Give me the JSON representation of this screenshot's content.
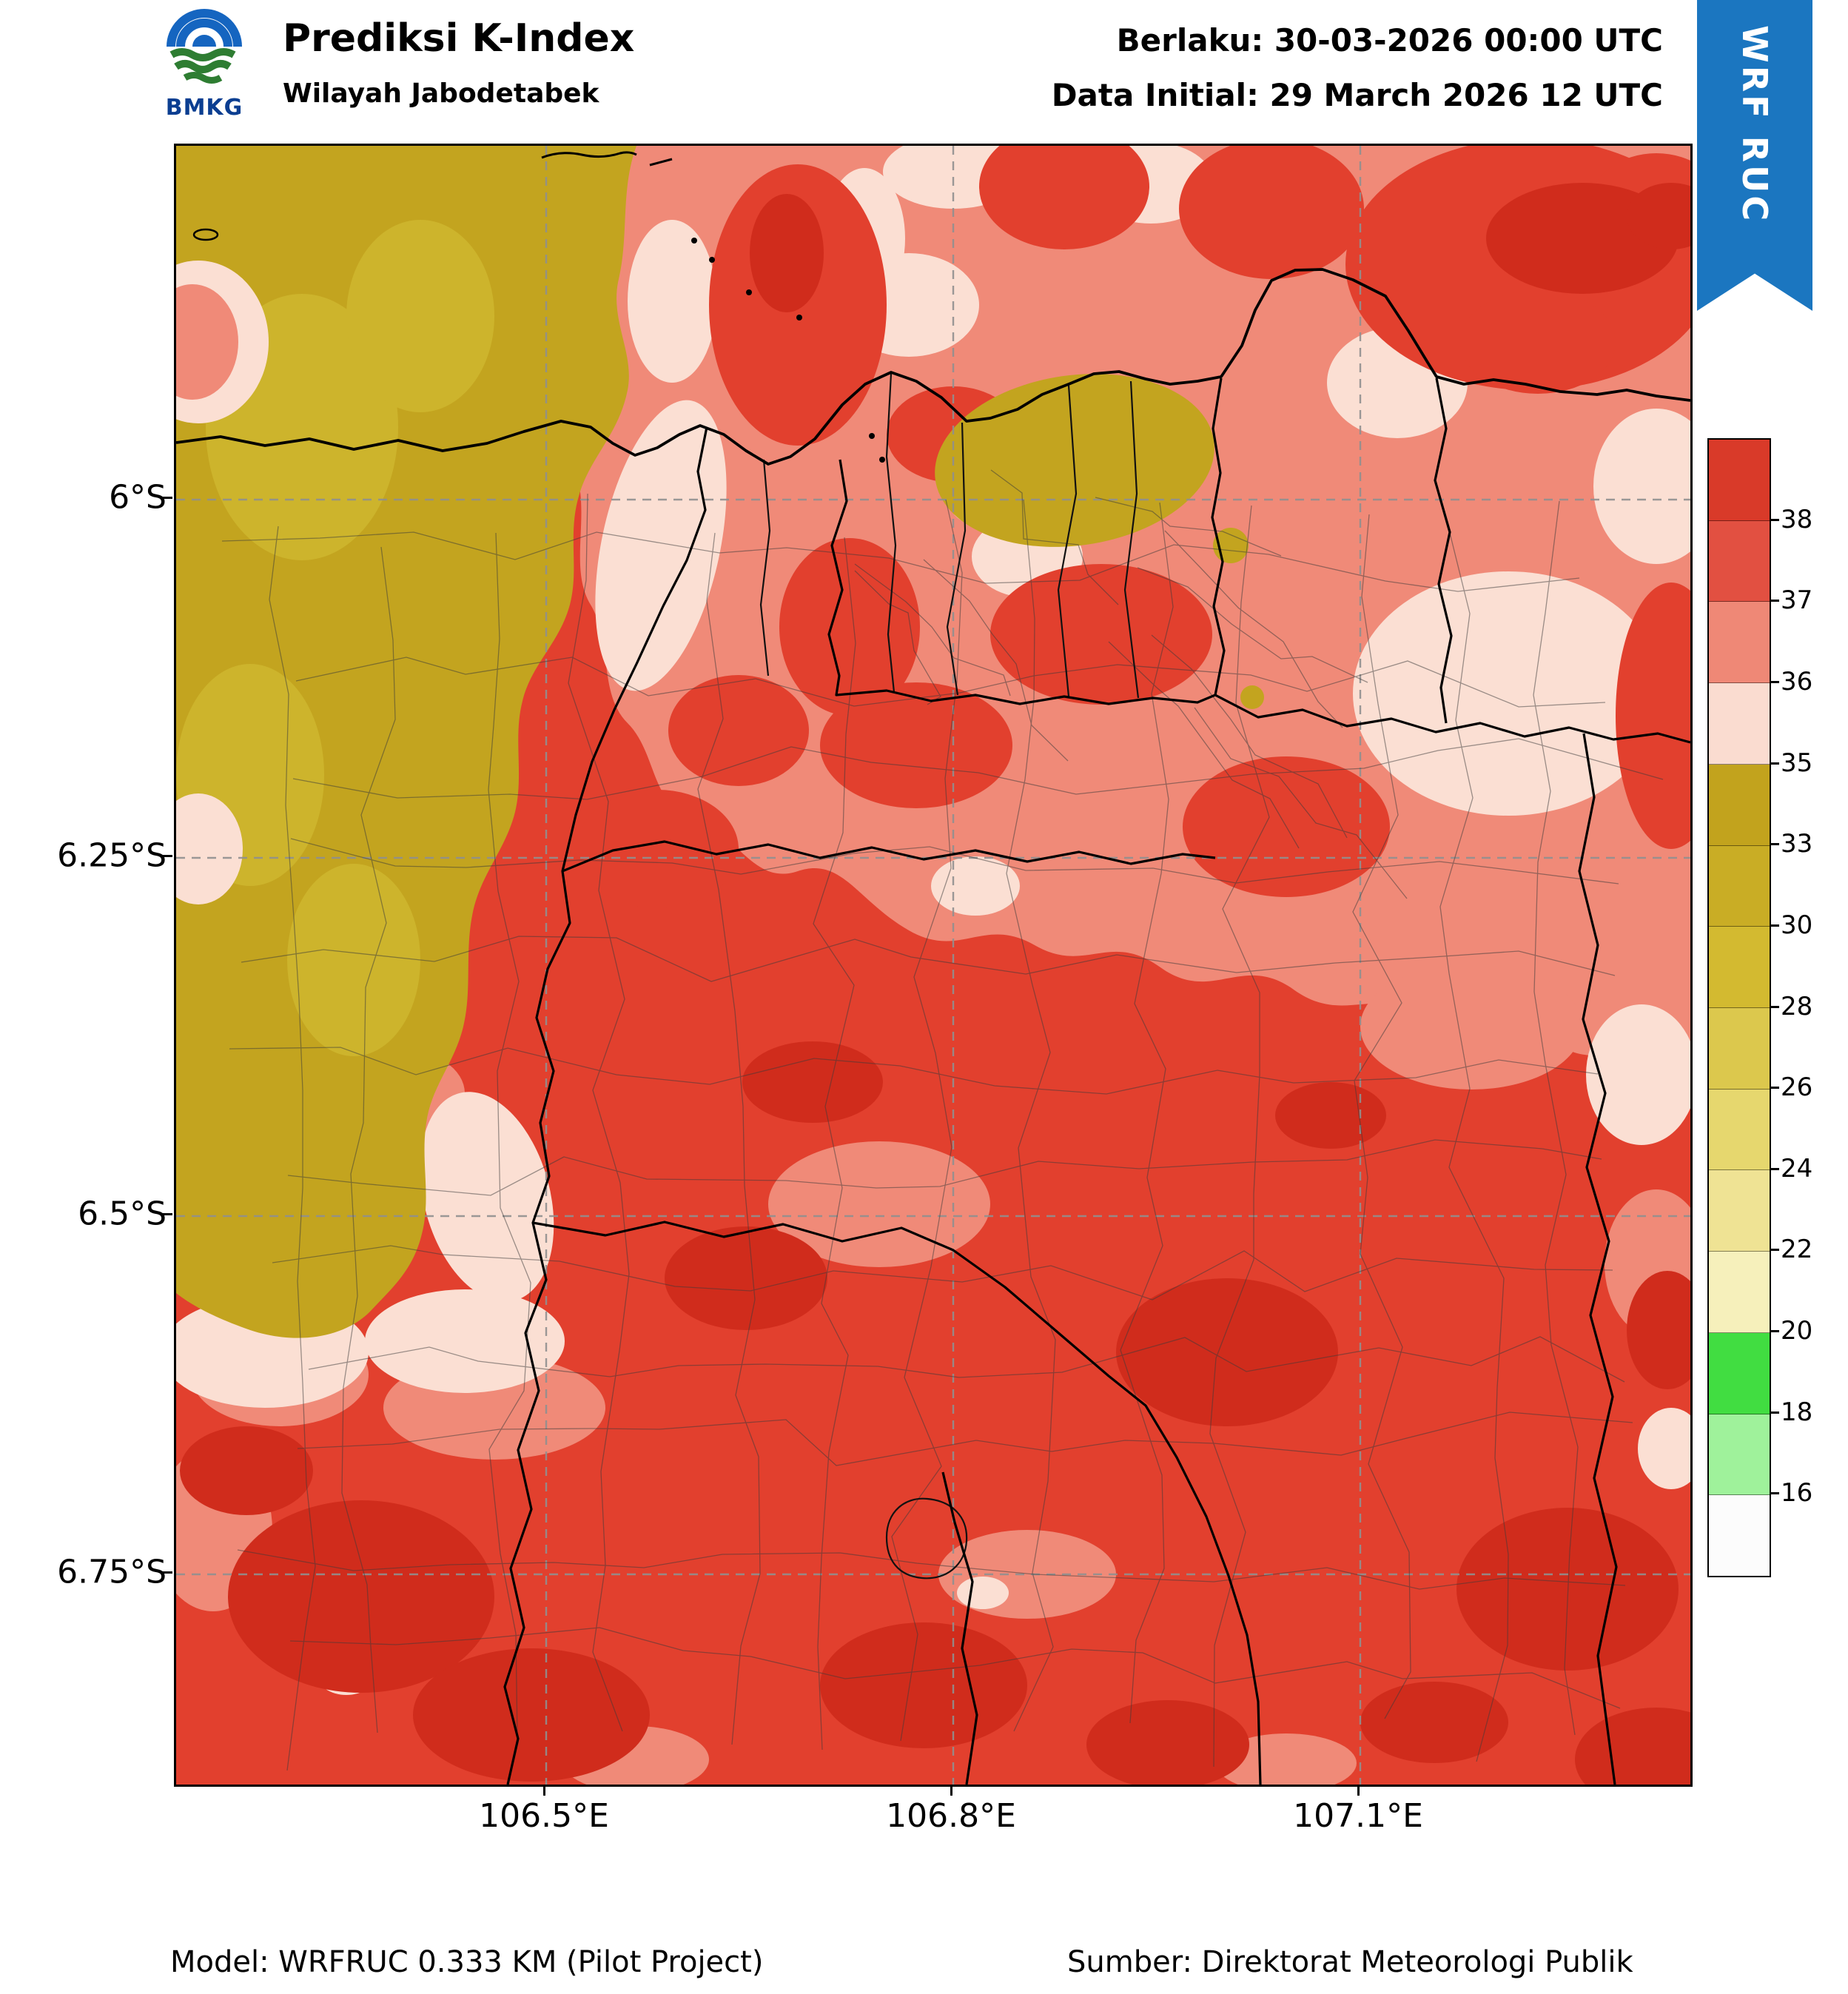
{
  "header": {
    "agency": "BMKG",
    "title": "Prediksi K-Index",
    "subtitle": "Wilayah Jabodetabek",
    "valid": "Berlaku: 30-03-2026 00:00 UTC",
    "initial": "Data Initial: 29 March 2026 12 UTC",
    "ribbon": "WRF RUC"
  },
  "axes": {
    "y_ticks": [
      "6°S",
      "6.25°S",
      "6.5°S",
      "6.75°S"
    ],
    "x_ticks": [
      "106.5°E",
      "106.8°E",
      "107.1°E"
    ]
  },
  "colorbar": {
    "tick_labels": [
      "38",
      "37",
      "36",
      "35",
      "33",
      "30",
      "28",
      "26",
      "24",
      "22",
      "20",
      "18",
      "16"
    ],
    "segment_colors_top_to_bottom": [
      "#d93a29",
      "#e25041",
      "#ef8876",
      "#fadcd0",
      "#c2a31d",
      "#c9ad25",
      "#d3ba30",
      "#dcc84d",
      "#e6d76e",
      "#efe394",
      "#f6f0bb",
      "#41dd41",
      "#9ff29b",
      "#fcfcfc"
    ]
  },
  "map_palette": {
    "red": "#e2402e",
    "dark_red": "#d02c1c",
    "salmon": "#f08a78",
    "pink_cream": "#fbdfd3",
    "olive": "#c3a41f",
    "olive_light": "#cdb42c",
    "ribbon_blue": "#1b76c0"
  },
  "footer": {
    "model": "Model: WRFRUC 0.333 KM (Pilot Project)",
    "source": "Sumber: Direktorat Meteorologi Publik"
  }
}
